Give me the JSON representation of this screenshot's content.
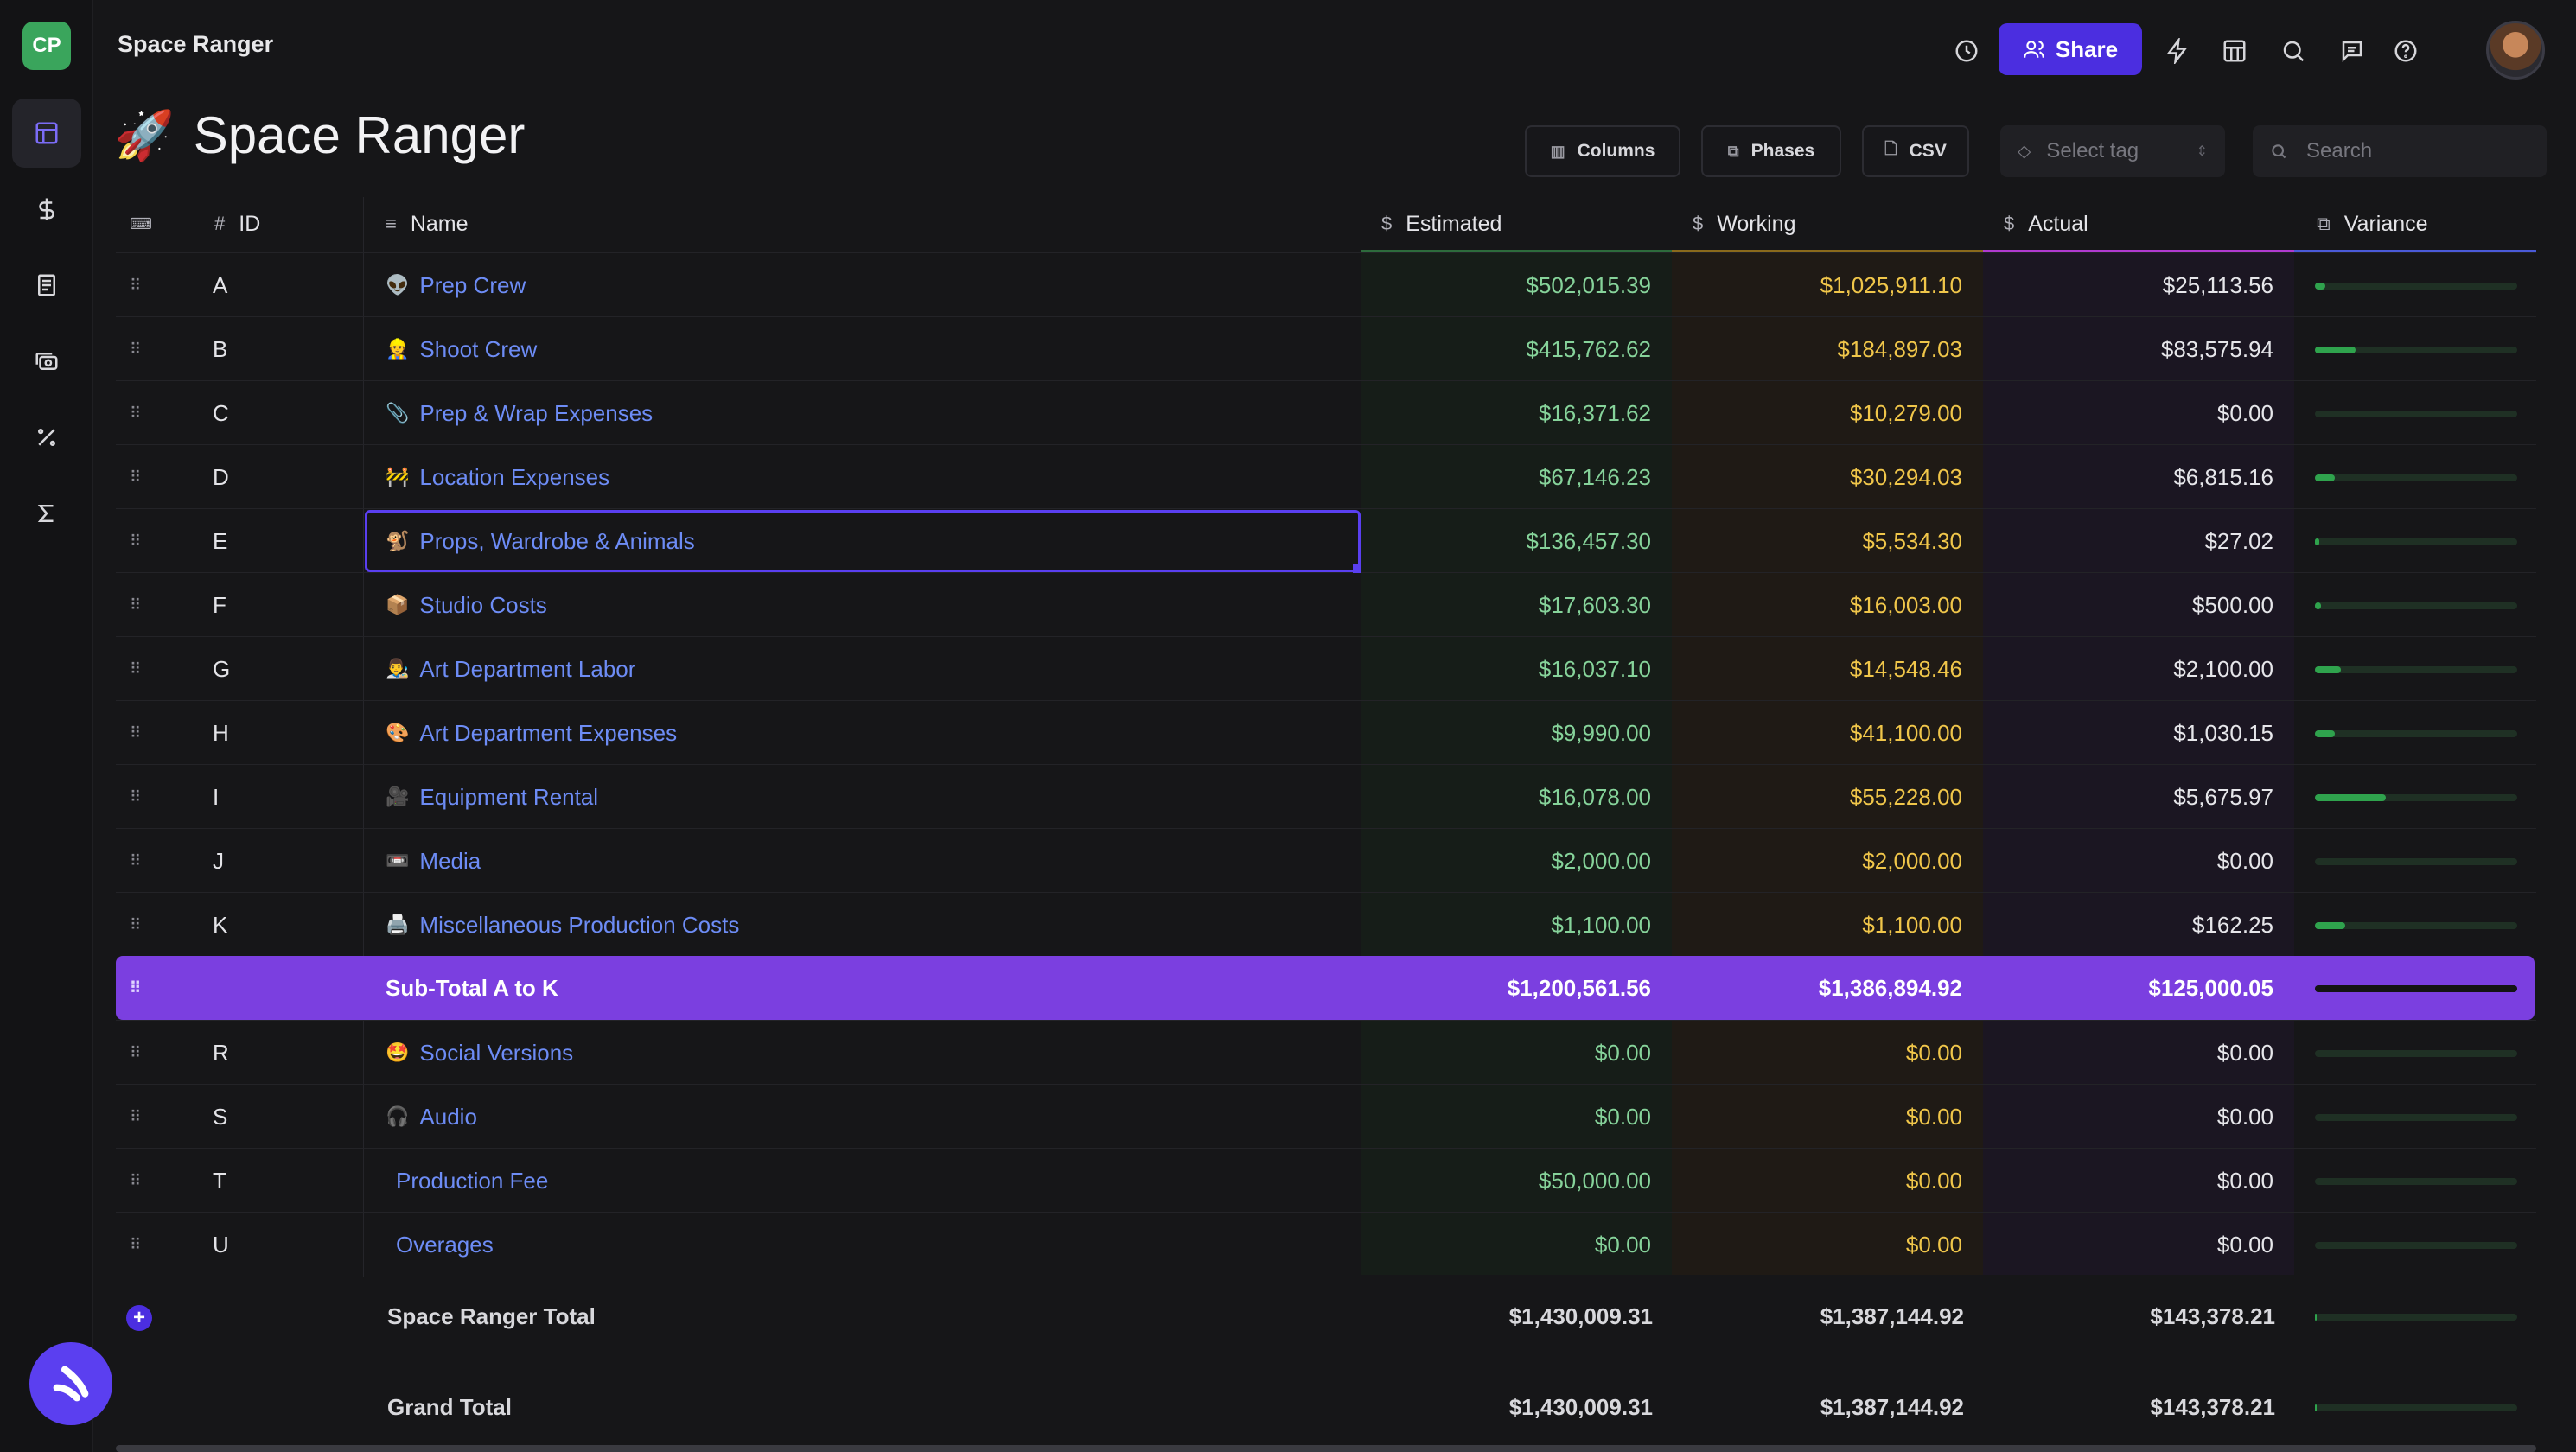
{
  "app": {
    "workspace_badge": "CP",
    "title": "Space Ranger"
  },
  "topbar": {
    "share_label": "Share"
  },
  "page": {
    "title": "Space Ranger",
    "emoji": "🚀"
  },
  "toolbar": {
    "columns_label": "Columns",
    "phases_label": "Phases",
    "csv_label": "CSV",
    "select_tag_placeholder": "Select tag",
    "search_placeholder": "Search"
  },
  "columns": {
    "id": "ID",
    "name": "Name",
    "estimated": "Estimated",
    "working": "Working",
    "actual": "Actual",
    "variance": "Variance"
  },
  "colors": {
    "accent": "#4b2ee0",
    "subtotal": "#7b3fe0",
    "estimated": "#86d39a",
    "working": "#f0c64a",
    "variance_fill": "#2fa34d"
  },
  "rows": [
    {
      "id": "A",
      "emoji": "👽",
      "name": "Prep Crew",
      "estimated": "$502,015.39",
      "working": "$1,025,911.10",
      "actual": "$25,113.56",
      "variance_fraction": 0.05
    },
    {
      "id": "B",
      "emoji": "👷",
      "name": "Shoot Crew",
      "estimated": "$415,762.62",
      "working": "$184,897.03",
      "actual": "$83,575.94",
      "variance_fraction": 0.2
    },
    {
      "id": "C",
      "emoji": "📎",
      "name": "Prep & Wrap Expenses",
      "estimated": "$16,371.62",
      "working": "$10,279.00",
      "actual": "$0.00",
      "variance_fraction": 0
    },
    {
      "id": "D",
      "emoji": "🚧",
      "name": "Location Expenses",
      "estimated": "$67,146.23",
      "working": "$30,294.03",
      "actual": "$6,815.16",
      "variance_fraction": 0.1
    },
    {
      "id": "E",
      "emoji": "🐒",
      "name": "Props, Wardrobe & Animals",
      "estimated": "$136,457.30",
      "working": "$5,534.30",
      "actual": "$27.02",
      "variance_fraction": 0.01
    },
    {
      "id": "F",
      "emoji": "📦",
      "name": "Studio Costs",
      "estimated": "$17,603.30",
      "working": "$16,003.00",
      "actual": "$500.00",
      "variance_fraction": 0.03
    },
    {
      "id": "G",
      "emoji": "👨‍🎨",
      "name": "Art Department Labor",
      "estimated": "$16,037.10",
      "working": "$14,548.46",
      "actual": "$2,100.00",
      "variance_fraction": 0.13
    },
    {
      "id": "H",
      "emoji": "🎨",
      "name": "Art Department Expenses",
      "estimated": "$9,990.00",
      "working": "$41,100.00",
      "actual": "$1,030.15",
      "variance_fraction": 0.1
    },
    {
      "id": "I",
      "emoji": "🎥",
      "name": "Equipment Rental",
      "estimated": "$16,078.00",
      "working": "$55,228.00",
      "actual": "$5,675.97",
      "variance_fraction": 0.35
    },
    {
      "id": "J",
      "emoji": "📼",
      "name": "Media",
      "estimated": "$2,000.00",
      "working": "$2,000.00",
      "actual": "$0.00",
      "variance_fraction": 0
    },
    {
      "id": "K",
      "emoji": "🖨️",
      "name": "Miscellaneous Production Costs",
      "estimated": "$1,100.00",
      "working": "$1,100.00",
      "actual": "$162.25",
      "variance_fraction": 0.15
    }
  ],
  "subtotal": {
    "label": "Sub-Total A to K",
    "estimated": "$1,200,561.56",
    "working": "$1,386,894.92",
    "actual": "$125,000.05",
    "variance_fraction": 1.0
  },
  "rows2": [
    {
      "id": "R",
      "emoji": "🤩",
      "name": "Social Versions",
      "estimated": "$0.00",
      "working": "$0.00",
      "actual": "$0.00",
      "variance_fraction": 0
    },
    {
      "id": "S",
      "emoji": "🎧",
      "name": "Audio",
      "estimated": "$0.00",
      "working": "$0.00",
      "actual": "$0.00",
      "variance_fraction": 0
    },
    {
      "id": "T",
      "emoji": "",
      "name": "Production Fee",
      "estimated": "$50,000.00",
      "working": "$0.00",
      "actual": "$0.00",
      "variance_fraction": 0
    },
    {
      "id": "U",
      "emoji": "",
      "name": "Overages",
      "estimated": "$0.00",
      "working": "$0.00",
      "actual": "$0.00",
      "variance_fraction": 0
    }
  ],
  "totals": [
    {
      "label": "Space Ranger Total",
      "estimated": "$1,430,009.31",
      "working": "$1,387,144.92",
      "actual": "$143,378.21"
    },
    {
      "label": "Grand Total",
      "estimated": "$1,430,009.31",
      "working": "$1,387,144.92",
      "actual": "$143,378.21"
    }
  ]
}
